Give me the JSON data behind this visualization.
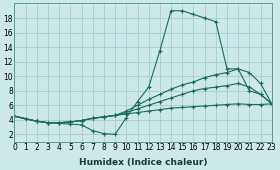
{
  "xlabel": "Humidex (Indice chaleur)",
  "xlim": [
    0,
    23
  ],
  "ylim": [
    1,
    20
  ],
  "background_color": "#cce8e8",
  "grid_color": "#aacccc",
  "line_color": "#1a6b5a",
  "line1_x": [
    0,
    1,
    2,
    3,
    4,
    5,
    6,
    7,
    8,
    9,
    10,
    11,
    12,
    13,
    14,
    15,
    16,
    17,
    18,
    19,
    20,
    21,
    22,
    23
  ],
  "line1_y": [
    4.5,
    4.1,
    3.8,
    3.6,
    3.5,
    3.4,
    3.3,
    2.5,
    2.1,
    2.0,
    4.3,
    6.5,
    8.5,
    13.5,
    19.0,
    19.0,
    18.5,
    18.0,
    17.5,
    11.0,
    11.0,
    8.0,
    7.5,
    6.2
  ],
  "line2_x": [
    0,
    2,
    3,
    4,
    5,
    6,
    7,
    8,
    9,
    10,
    11,
    12,
    13,
    14,
    15,
    16,
    17,
    18,
    19,
    20,
    21,
    22,
    23
  ],
  "line2_y": [
    4.5,
    3.8,
    3.6,
    3.6,
    3.7,
    3.9,
    4.2,
    4.4,
    4.6,
    5.2,
    6.0,
    6.8,
    7.5,
    8.2,
    8.8,
    9.2,
    9.8,
    10.2,
    10.5,
    11.0,
    10.5,
    9.0,
    6.2
  ],
  "line3_x": [
    0,
    2,
    3,
    4,
    5,
    6,
    7,
    8,
    9,
    10,
    11,
    12,
    13,
    14,
    15,
    16,
    17,
    18,
    19,
    20,
    21,
    22,
    23
  ],
  "line3_y": [
    4.5,
    3.8,
    3.6,
    3.6,
    3.7,
    3.9,
    4.2,
    4.4,
    4.6,
    5.0,
    5.5,
    6.0,
    6.5,
    7.0,
    7.5,
    8.0,
    8.3,
    8.5,
    8.7,
    9.0,
    8.5,
    7.5,
    6.2
  ],
  "line4_x": [
    0,
    2,
    3,
    4,
    5,
    6,
    7,
    8,
    9,
    10,
    11,
    12,
    13,
    14,
    15,
    16,
    17,
    18,
    19,
    20,
    21,
    22,
    23
  ],
  "line4_y": [
    4.5,
    3.8,
    3.6,
    3.6,
    3.7,
    3.9,
    4.2,
    4.4,
    4.6,
    4.8,
    5.0,
    5.2,
    5.4,
    5.6,
    5.7,
    5.8,
    5.9,
    6.0,
    6.1,
    6.2,
    6.1,
    6.1,
    6.2
  ],
  "xtick_labels": [
    "0",
    "1",
    "2",
    "3",
    "4",
    "5",
    "6",
    "7",
    "8",
    "9",
    "10",
    "11",
    "12",
    "13",
    "14",
    "15",
    "16",
    "17",
    "18",
    "19",
    "20",
    "21",
    "22",
    "23"
  ],
  "ytick_values": [
    2,
    4,
    6,
    8,
    10,
    12,
    14,
    16,
    18
  ],
  "fontsize_xlabel": 6.5,
  "fontsize_ticks": 5.5
}
